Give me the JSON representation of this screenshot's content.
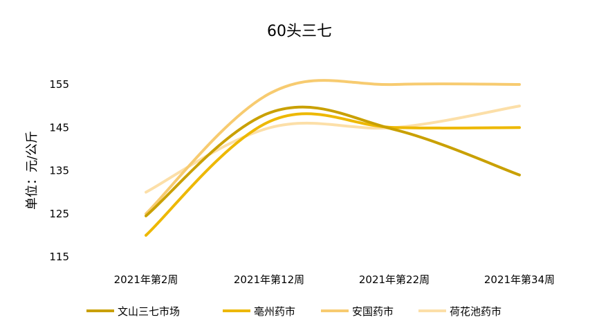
{
  "chart_data": {
    "type": "line",
    "title": "60头三七",
    "ylabel": "单位：元/公斤",
    "xlabel": "",
    "categories": [
      "2021年第2周",
      "2021年第12周",
      "2021年第22周",
      "2021年第34周"
    ],
    "yticks": [
      115,
      125,
      135,
      145,
      155
    ],
    "ylim": [
      115,
      155
    ],
    "smooth": true,
    "grid": false,
    "legend_position": "bottom",
    "series": [
      {
        "name": "文山三七市场",
        "values": [
          124.5,
          148.5,
          144.5,
          134
        ],
        "color": "#C9A000"
      },
      {
        "name": "亳州药市",
        "values": [
          120,
          146.5,
          145,
          145
        ],
        "color": "#EDB800"
      },
      {
        "name": "安国药市",
        "values": [
          125,
          153,
          155,
          155
        ],
        "color": "#F7CB70"
      },
      {
        "name": "荷花池药市",
        "values": [
          130,
          145,
          145,
          150
        ],
        "color": "#FCDFA8"
      }
    ]
  }
}
